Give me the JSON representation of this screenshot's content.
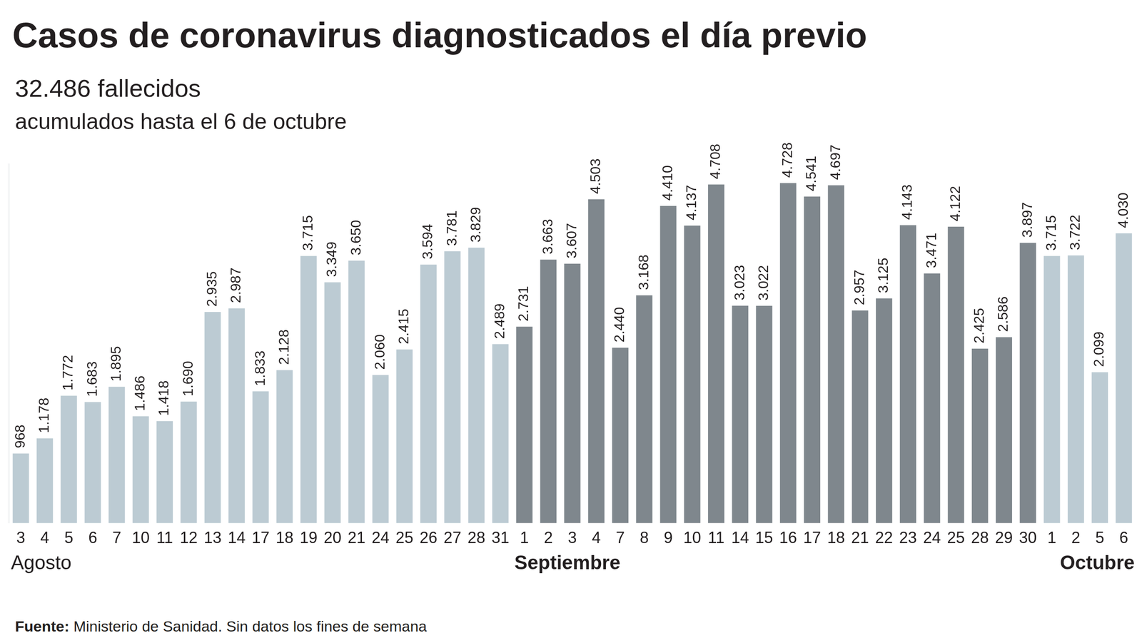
{
  "chart_data": {
    "type": "bar",
    "title": "Casos de coronavirus diagnosticados el día previo",
    "subtitle": [
      "32.486 fallecidos",
      "acumulados hasta el 6 de octubre"
    ],
    "source_label": "Fuente:",
    "source": "Ministerio de Sanidad. Sin datos los fines de semana",
    "categories": [
      "3",
      "4",
      "5",
      "6",
      "7",
      "10",
      "11",
      "12",
      "13",
      "14",
      "17",
      "18",
      "19",
      "20",
      "21",
      "24",
      "25",
      "26",
      "27",
      "28",
      "31",
      "1",
      "2",
      "3",
      "4",
      "7",
      "8",
      "9",
      "10",
      "11",
      "14",
      "15",
      "16",
      "17",
      "18",
      "21",
      "22",
      "23",
      "24",
      "25",
      "28",
      "29",
      "30",
      "1",
      "2",
      "5",
      "6"
    ],
    "groups": [
      {
        "label": "Agosto",
        "count": 21
      },
      {
        "label": "Septiembre",
        "count": 22
      },
      {
        "label": "Octubre",
        "count": 4
      }
    ],
    "values": [
      968,
      1178,
      1772,
      1683,
      1895,
      1486,
      1418,
      1690,
      2935,
      2987,
      1833,
      2128,
      3715,
      3349,
      3650,
      2060,
      2415,
      3594,
      3781,
      3829,
      2489,
      2731,
      3663,
      3607,
      4503,
      2440,
      3168,
      4410,
      4137,
      4708,
      3023,
      3022,
      4728,
      4541,
      4697,
      2957,
      3125,
      4143,
      3471,
      4122,
      2425,
      2586,
      3897,
      3715,
      3722,
      2099,
      4030
    ],
    "value_labels": [
      "968",
      "1.178",
      "1.772",
      "1.683",
      "1.895",
      "1.486",
      "1.418",
      "1.690",
      "2.935",
      "2.987",
      "1.833",
      "2.128",
      "3.715",
      "3.349",
      "3.650",
      "2.060",
      "2.415",
      "3.594",
      "3.781",
      "3.829",
      "2.489",
      "2.731",
      "3.663",
      "3.607",
      "4.503",
      "2.440",
      "3.168",
      "4.410",
      "4.137",
      "4.708",
      "3.023",
      "3.022",
      "4.728",
      "4.541",
      "4.697",
      "2.957",
      "3.125",
      "4.143",
      "3.471",
      "4.122",
      "2.425",
      "2.586",
      "3.897",
      "3.715",
      "3.722",
      "2.099",
      "4.030"
    ],
    "colors": [
      "#bccbd3",
      "#bccbd3",
      "#bccbd3",
      "#bccbd3",
      "#bccbd3",
      "#bccbd3",
      "#bccbd3",
      "#bccbd3",
      "#bccbd3",
      "#bccbd3",
      "#bccbd3",
      "#bccbd3",
      "#bccbd3",
      "#bccbd3",
      "#bccbd3",
      "#bccbd3",
      "#bccbd3",
      "#bccbd3",
      "#bccbd3",
      "#bccbd3",
      "#bccbd3",
      "#7f878d",
      "#7f878d",
      "#7f878d",
      "#7f878d",
      "#7f878d",
      "#7f878d",
      "#7f878d",
      "#7f878d",
      "#7f878d",
      "#7f878d",
      "#7f878d",
      "#7f878d",
      "#7f878d",
      "#7f878d",
      "#7f878d",
      "#7f878d",
      "#7f878d",
      "#7f878d",
      "#7f878d",
      "#7f878d",
      "#7f878d",
      "#7f878d",
      "#bccbd3",
      "#bccbd3",
      "#bccbd3",
      "#bccbd3"
    ],
    "ylim": [
      0,
      5000
    ],
    "grid": false,
    "legend": false,
    "data_labels": true,
    "tick_labels": "x"
  }
}
